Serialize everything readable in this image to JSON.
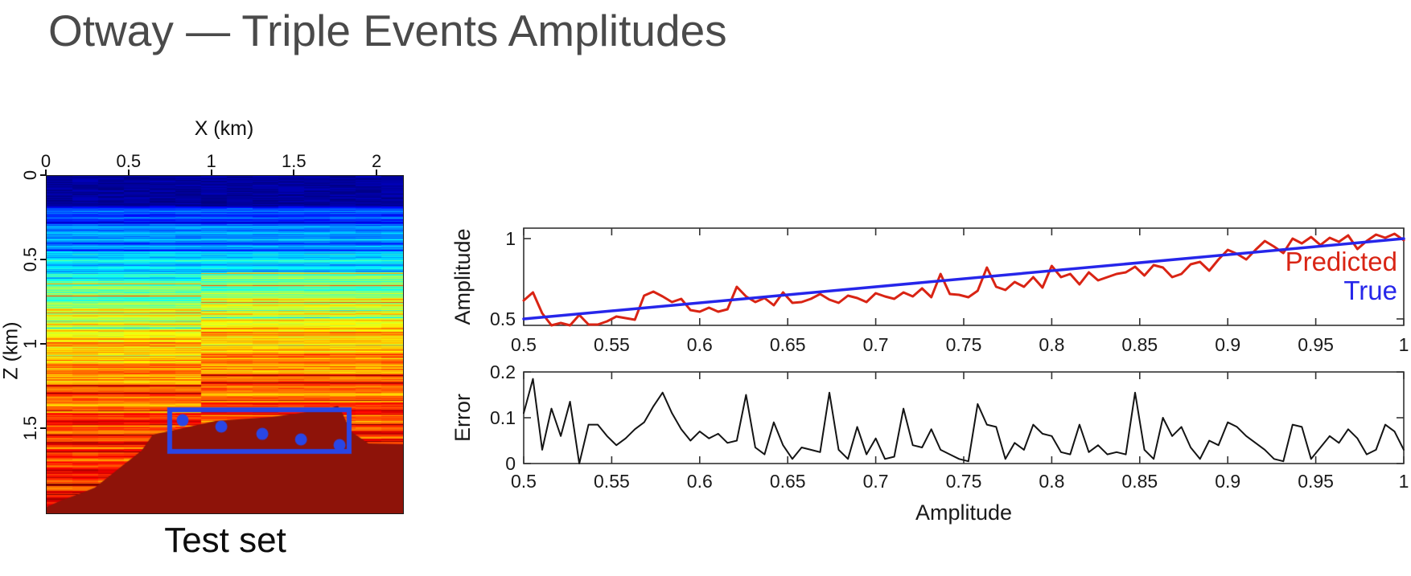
{
  "slide": {
    "title": "Otway — Triple Events Amplitudes"
  },
  "seismic_panel": {
    "xlabel": "X (km)",
    "zlabel": "Z (km)",
    "caption": "Test set",
    "xticks": [
      0,
      0.5,
      1,
      1.5,
      2
    ],
    "xtick_labels": [
      "0",
      "0.5",
      "1",
      "1.5",
      "2"
    ],
    "zticks": [
      0,
      0.5,
      1,
      1.5
    ],
    "ztick_labels": [
      "0",
      "0.5",
      "1",
      "1.5"
    ],
    "x_range_km": [
      0,
      2.155
    ],
    "z_range_km": [
      0,
      2.0
    ],
    "colormap": "jet",
    "highlight_box_km": {
      "x": [
        0.744,
        1.829
      ],
      "z": [
        1.386,
        1.633
      ]
    },
    "marker_points_km": [
      [
        0.822,
        1.448
      ],
      [
        1.056,
        1.486
      ],
      [
        1.304,
        1.529
      ],
      [
        1.538,
        1.562
      ],
      [
        1.771,
        1.595
      ]
    ],
    "overlay_color": "#2946e6"
  },
  "chart_data": [
    {
      "type": "line",
      "name": "amplitude-comparison",
      "ylabel": "Amplitude",
      "xlabel": "",
      "xlim": [
        0.5,
        1.0
      ],
      "ylim": [
        0.46,
        1.065
      ],
      "xticks": [
        0.5,
        0.55,
        0.6,
        0.65,
        0.7,
        0.75,
        0.8,
        0.85,
        0.9,
        0.95,
        1
      ],
      "xtick_labels": [
        "0.5",
        "0.55",
        "0.6",
        "0.65",
        "0.7",
        "0.75",
        "0.8",
        "0.85",
        "0.9",
        "0.95",
        "1"
      ],
      "yticks": [
        0.5,
        1
      ],
      "ytick_labels": [
        "0.5",
        "1"
      ],
      "grid": false,
      "legend": {
        "position": "inside-right"
      },
      "series": [
        {
          "name": "Predicted",
          "color": "#d92414",
          "width": 3,
          "values": [
            0.615,
            0.665,
            0.535,
            0.425,
            0.475,
            0.425,
            0.525,
            0.465,
            0.465,
            0.485,
            0.515,
            0.505,
            0.495,
            0.645,
            0.67,
            0.64,
            0.605,
            0.625,
            0.555,
            0.545,
            0.57,
            0.545,
            0.56,
            0.7,
            0.64,
            0.605,
            0.63,
            0.585,
            0.665,
            0.6,
            0.605,
            0.625,
            0.655,
            0.62,
            0.6,
            0.645,
            0.63,
            0.605,
            0.66,
            0.64,
            0.625,
            0.665,
            0.64,
            0.69,
            0.635,
            0.78,
            0.655,
            0.65,
            0.635,
            0.675,
            0.82,
            0.7,
            0.68,
            0.73,
            0.7,
            0.76,
            0.695,
            0.83,
            0.76,
            0.78,
            0.715,
            0.79,
            0.74,
            0.76,
            0.78,
            0.79,
            0.825,
            0.77,
            0.835,
            0.82,
            0.76,
            0.78,
            0.84,
            0.855,
            0.8,
            0.87,
            0.93,
            0.905,
            0.87,
            0.93,
            0.985,
            0.95,
            0.91,
            1.0,
            0.97,
            1.01,
            0.96,
            1.005,
            0.98,
            1.02,
            0.935,
            0.985,
            1.025,
            1.005,
            1.03,
            0.99
          ]
        },
        {
          "name": "True",
          "color": "#2626ea",
          "width": 3.5,
          "x": [
            0.5,
            1.0
          ],
          "values": [
            0.5,
            1.0
          ]
        }
      ]
    },
    {
      "type": "line",
      "name": "prediction-error",
      "ylabel": "Error",
      "xlabel": "Amplitude",
      "xlim": [
        0.5,
        1.0
      ],
      "ylim": [
        0,
        0.2
      ],
      "xticks": [
        0.5,
        0.55,
        0.6,
        0.65,
        0.7,
        0.75,
        0.8,
        0.85,
        0.9,
        0.95,
        1
      ],
      "xtick_labels": [
        "0.5",
        "0.55",
        "0.6",
        "0.65",
        "0.7",
        "0.75",
        "0.8",
        "0.85",
        "0.9",
        "0.95",
        "1"
      ],
      "yticks": [
        0,
        0.1,
        0.2
      ],
      "ytick_labels": [
        "0",
        "0.1",
        "0.2"
      ],
      "grid": false,
      "series": [
        {
          "name": "Error",
          "color": "#141414",
          "width": 2,
          "values": [
            0.11,
            0.185,
            0.03,
            0.12,
            0.06,
            0.135,
            0.0,
            0.085,
            0.085,
            0.06,
            0.04,
            0.055,
            0.075,
            0.09,
            0.125,
            0.155,
            0.11,
            0.075,
            0.05,
            0.07,
            0.055,
            0.065,
            0.045,
            0.05,
            0.15,
            0.035,
            0.02,
            0.09,
            0.04,
            0.01,
            0.035,
            0.03,
            0.025,
            0.155,
            0.03,
            0.01,
            0.08,
            0.02,
            0.055,
            0.01,
            0.015,
            0.12,
            0.04,
            0.035,
            0.075,
            0.03,
            0.02,
            0.01,
            0.005,
            0.13,
            0.085,
            0.08,
            0.01,
            0.045,
            0.03,
            0.085,
            0.065,
            0.06,
            0.025,
            0.02,
            0.085,
            0.025,
            0.04,
            0.02,
            0.025,
            0.02,
            0.155,
            0.03,
            0.01,
            0.1,
            0.06,
            0.08,
            0.035,
            0.01,
            0.05,
            0.04,
            0.09,
            0.08,
            0.06,
            0.045,
            0.03,
            0.01,
            0.005,
            0.085,
            0.08,
            0.01,
            0.035,
            0.06,
            0.045,
            0.075,
            0.055,
            0.02,
            0.03,
            0.085,
            0.07,
            0.03
          ]
        }
      ]
    }
  ]
}
